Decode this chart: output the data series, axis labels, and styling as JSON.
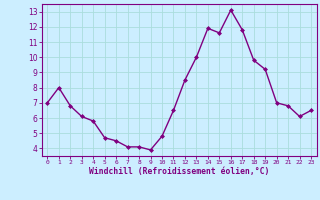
{
  "x": [
    0,
    1,
    2,
    3,
    4,
    5,
    6,
    7,
    8,
    9,
    10,
    11,
    12,
    13,
    14,
    15,
    16,
    17,
    18,
    19,
    20,
    21,
    22,
    23
  ],
  "y": [
    7.0,
    8.0,
    6.8,
    6.1,
    5.8,
    4.7,
    4.5,
    4.1,
    4.1,
    3.9,
    4.8,
    6.5,
    8.5,
    10.0,
    11.9,
    11.6,
    13.1,
    11.8,
    9.8,
    9.2,
    7.0,
    6.8,
    6.1,
    6.5
  ],
  "line_color": "#800080",
  "marker_color": "#800080",
  "bg_color": "#cceeff",
  "grid_color": "#aadddd",
  "xlabel": "Windchill (Refroidissement éolien,°C)",
  "xlabel_color": "#800080",
  "tick_color": "#800080",
  "spine_color": "#800080",
  "ylim": [
    3.5,
    13.5
  ],
  "xlim": [
    -0.5,
    23.5
  ],
  "yticks": [
    4,
    5,
    6,
    7,
    8,
    9,
    10,
    11,
    12,
    13
  ],
  "xticks": [
    0,
    1,
    2,
    3,
    4,
    5,
    6,
    7,
    8,
    9,
    10,
    11,
    12,
    13,
    14,
    15,
    16,
    17,
    18,
    19,
    20,
    21,
    22,
    23
  ]
}
